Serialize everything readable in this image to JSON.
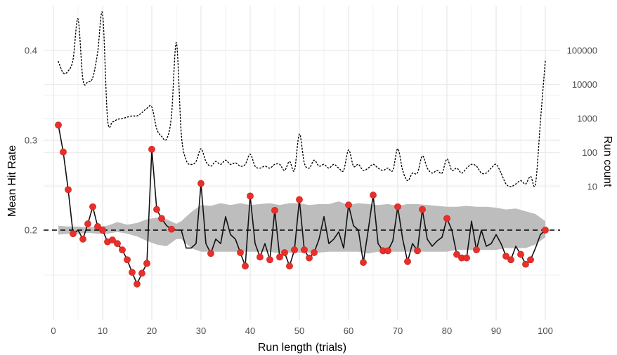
{
  "chart_data": {
    "type": "line",
    "xlabel": "Run length (trials)",
    "ylabel": "Mean Hit Rate",
    "y2label": "Run count",
    "xlim": [
      -2,
      103
    ],
    "ylim": [
      0.1,
      0.45
    ],
    "xticks": [
      0,
      10,
      20,
      30,
      40,
      50,
      60,
      70,
      80,
      90,
      100
    ],
    "xtick_labels": [
      "0",
      "10",
      "20",
      "30",
      "40",
      "50",
      "60",
      "70",
      "80",
      "90",
      "100"
    ],
    "yticks": [
      0.2,
      0.3,
      0.4
    ],
    "ytick_labels": [
      "0.2",
      "0.3",
      "0.4"
    ],
    "y2_scale": "log",
    "y2ticks": [
      10,
      100,
      1000,
      10000,
      100000
    ],
    "y2tick_labels": [
      "10",
      "100",
      "1000",
      "10000",
      "100000"
    ],
    "chance_level": 0.2,
    "grid": true,
    "mean_hit_rate": {
      "x": [
        1,
        2,
        3,
        4,
        5,
        6,
        7,
        8,
        9,
        10,
        11,
        12,
        13,
        14,
        15,
        16,
        17,
        18,
        19,
        20,
        21,
        22,
        23,
        24,
        25,
        26,
        27,
        28,
        29,
        30,
        31,
        32,
        33,
        34,
        35,
        36,
        37,
        38,
        39,
        40,
        41,
        42,
        43,
        44,
        45,
        46,
        47,
        48,
        49,
        50,
        51,
        52,
        53,
        54,
        55,
        56,
        57,
        58,
        59,
        60,
        61,
        62,
        63,
        64,
        65,
        66,
        67,
        68,
        69,
        70,
        71,
        72,
        73,
        74,
        75,
        76,
        77,
        78,
        79,
        80,
        81,
        82,
        83,
        84,
        85,
        86,
        87,
        88,
        89,
        90,
        91,
        92,
        93,
        94,
        95,
        96,
        97,
        98,
        99,
        100
      ],
      "y": [
        0.317,
        0.287,
        0.245,
        0.196,
        0.2,
        0.19,
        0.207,
        0.226,
        0.204,
        0.2,
        0.187,
        0.189,
        0.185,
        0.178,
        0.167,
        0.153,
        0.14,
        0.152,
        0.163,
        0.29,
        0.223,
        0.213,
        0.205,
        0.201,
        0.2,
        0.2,
        0.18,
        0.18,
        0.185,
        0.252,
        0.185,
        0.174,
        0.19,
        0.185,
        0.215,
        0.195,
        0.19,
        0.175,
        0.16,
        0.238,
        0.185,
        0.17,
        0.185,
        0.167,
        0.222,
        0.17,
        0.175,
        0.16,
        0.178,
        0.234,
        0.178,
        0.169,
        0.175,
        0.19,
        0.215,
        0.185,
        0.19,
        0.198,
        0.18,
        0.228,
        0.205,
        0.2,
        0.164,
        0.2,
        0.239,
        0.185,
        0.177,
        0.177,
        0.188,
        0.226,
        0.19,
        0.165,
        0.185,
        0.177,
        0.223,
        0.19,
        0.182,
        0.188,
        0.192,
        0.213,
        0.2,
        0.173,
        0.169,
        0.169,
        0.21,
        0.178,
        0.2,
        0.182,
        0.185,
        0.195,
        0.185,
        0.171,
        0.167,
        0.182,
        0.173,
        0.162,
        0.167,
        0.18,
        0.195,
        0.2
      ]
    },
    "highlighted_points": [
      1,
      2,
      3,
      4,
      6,
      7,
      8,
      9,
      10,
      11,
      12,
      13,
      14,
      15,
      16,
      17,
      18,
      19,
      20,
      21,
      22,
      24,
      30,
      32,
      38,
      39,
      40,
      42,
      44,
      45,
      46,
      47,
      48,
      49,
      50,
      51,
      52,
      53,
      60,
      63,
      65,
      67,
      68,
      70,
      72,
      74,
      75,
      80,
      82,
      83,
      84,
      86,
      92,
      93,
      95,
      96,
      97,
      100
    ],
    "null_band": {
      "x": [
        1,
        3,
        5,
        7,
        9,
        11,
        13,
        15,
        17,
        19,
        21,
        23,
        25,
        26,
        28,
        30,
        32,
        34,
        36,
        38,
        40,
        42,
        44,
        46,
        48,
        50,
        52,
        54,
        56,
        58,
        60,
        62,
        64,
        66,
        68,
        70,
        72,
        74,
        76,
        78,
        80,
        82,
        84,
        86,
        88,
        90,
        92,
        94,
        96,
        98,
        100
      ],
      "lower": [
        0.195,
        0.196,
        0.196,
        0.197,
        0.196,
        0.196,
        0.198,
        0.196,
        0.193,
        0.188,
        0.184,
        0.182,
        0.19,
        0.19,
        0.18,
        0.176,
        0.176,
        0.176,
        0.176,
        0.176,
        0.176,
        0.176,
        0.176,
        0.174,
        0.175,
        0.175,
        0.175,
        0.175,
        0.176,
        0.176,
        0.176,
        0.176,
        0.174,
        0.176,
        0.176,
        0.176,
        0.176,
        0.176,
        0.176,
        0.176,
        0.176,
        0.178,
        0.178,
        0.178,
        0.178,
        0.178,
        0.18,
        0.18,
        0.18,
        0.184,
        0.192
      ],
      "upper": [
        0.205,
        0.204,
        0.204,
        0.203,
        0.204,
        0.205,
        0.209,
        0.206,
        0.208,
        0.212,
        0.214,
        0.212,
        0.207,
        0.21,
        0.22,
        0.228,
        0.227,
        0.23,
        0.228,
        0.23,
        0.228,
        0.229,
        0.23,
        0.228,
        0.23,
        0.23,
        0.228,
        0.229,
        0.229,
        0.232,
        0.228,
        0.23,
        0.229,
        0.228,
        0.229,
        0.227,
        0.229,
        0.229,
        0.228,
        0.227,
        0.226,
        0.226,
        0.227,
        0.226,
        0.226,
        0.225,
        0.223,
        0.224,
        0.221,
        0.218,
        0.21
      ]
    },
    "run_count": {
      "x": [
        1,
        2,
        3,
        4,
        5,
        6,
        7,
        8,
        9,
        10,
        11,
        12,
        13,
        14,
        15,
        16,
        17,
        18,
        19,
        20,
        21,
        22,
        23,
        24,
        25,
        26,
        27,
        28,
        29,
        30,
        31,
        32,
        33,
        34,
        35,
        36,
        37,
        38,
        39,
        40,
        41,
        42,
        43,
        44,
        45,
        46,
        47,
        48,
        49,
        50,
        51,
        52,
        53,
        54,
        55,
        56,
        57,
        58,
        59,
        60,
        61,
        62,
        63,
        64,
        65,
        66,
        67,
        68,
        69,
        70,
        71,
        72,
        73,
        74,
        75,
        76,
        77,
        78,
        79,
        80,
        81,
        82,
        83,
        84,
        85,
        86,
        87,
        88,
        89,
        90,
        91,
        92,
        93,
        94,
        95,
        96,
        97,
        98,
        99,
        100
      ],
      "count": [
        48000,
        22000,
        25000,
        55000,
        850000,
        14000,
        12000,
        16000,
        90000,
        1200000,
        1000,
        800,
        950,
        1000,
        1100,
        1200,
        1200,
        1500,
        2000,
        2200,
        500,
        300,
        250,
        1200,
        170000,
        350,
        60,
        45,
        55,
        130,
        55,
        40,
        55,
        45,
        60,
        45,
        50,
        40,
        45,
        90,
        40,
        35,
        40,
        35,
        45,
        45,
        30,
        55,
        30,
        350,
        50,
        35,
        60,
        40,
        45,
        35,
        45,
        35,
        30,
        120,
        40,
        45,
        30,
        35,
        45,
        35,
        30,
        35,
        30,
        130,
        30,
        15,
        25,
        25,
        80,
        35,
        25,
        30,
        25,
        65,
        30,
        35,
        25,
        35,
        45,
        40,
        25,
        25,
        35,
        45,
        25,
        12,
        10,
        12,
        15,
        12,
        20,
        12,
        800,
        50000
      ]
    }
  }
}
